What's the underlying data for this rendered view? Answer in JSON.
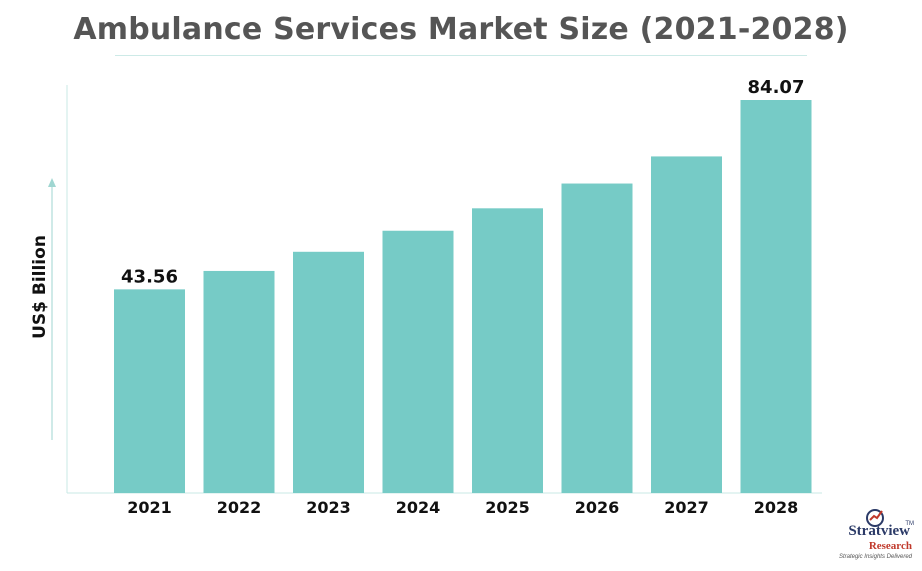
{
  "chart_data": {
    "type": "bar",
    "title": "Ambulance Services Market Size (2021-2028)",
    "ylabel": "US$ Billion",
    "xlabel": "",
    "categories": [
      "2021",
      "2022",
      "2023",
      "2024",
      "2025",
      "2026",
      "2027",
      "2028"
    ],
    "values": [
      43.56,
      47.5,
      51.6,
      56.1,
      60.9,
      66.2,
      72.0,
      84.07
    ],
    "data_labels": [
      "43.56",
      "",
      "",
      "",
      "",
      "",
      "",
      "84.07"
    ],
    "ylim": [
      0,
      88
    ],
    "bar_color": "#76cbc6",
    "axis_color": "#c9e8e5",
    "grid": false,
    "legend": "none"
  },
  "brand": {
    "name": "Stratview",
    "tm": "TM",
    "sub": "Research",
    "tagline": "Strategic Insights Delivered"
  }
}
